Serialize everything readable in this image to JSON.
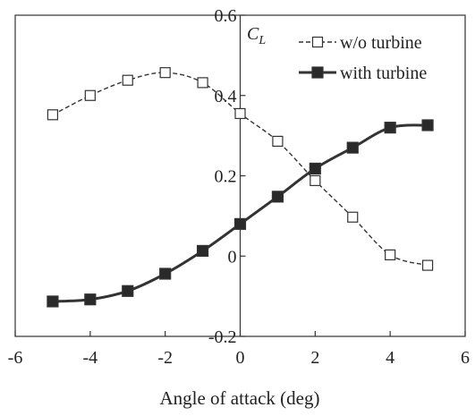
{
  "chart_data": {
    "type": "line",
    "xlabel": "Angle of attack (deg)",
    "ylabel": "C",
    "ylabel_sub": "L",
    "xlim": [
      -6,
      6
    ],
    "ylim": [
      -0.2,
      0.6
    ],
    "xticks": [
      "-6",
      "-4",
      "-2",
      "0",
      "2",
      "4",
      "6"
    ],
    "yticks": [
      "-0.2",
      "0",
      "0.2",
      "0.4",
      "0.6"
    ],
    "x": [
      -5,
      -4,
      -3,
      -2,
      -1,
      0,
      1,
      2,
      3,
      4,
      5
    ],
    "series": [
      {
        "name": "w/o turbine",
        "values": [
          0.352,
          0.4,
          0.438,
          0.457,
          0.432,
          0.355,
          0.286,
          0.188,
          0.097,
          0.003,
          -0.023
        ],
        "style": "dashed",
        "marker": "open-square",
        "color": "#333333"
      },
      {
        "name": "with turbine",
        "values": [
          -0.113,
          -0.108,
          -0.087,
          -0.044,
          0.013,
          0.08,
          0.148,
          0.218,
          0.27,
          0.32,
          0.326
        ],
        "style": "solid",
        "marker": "filled-square",
        "color": "#333333"
      }
    ],
    "grid": false,
    "legend": "top-right"
  }
}
